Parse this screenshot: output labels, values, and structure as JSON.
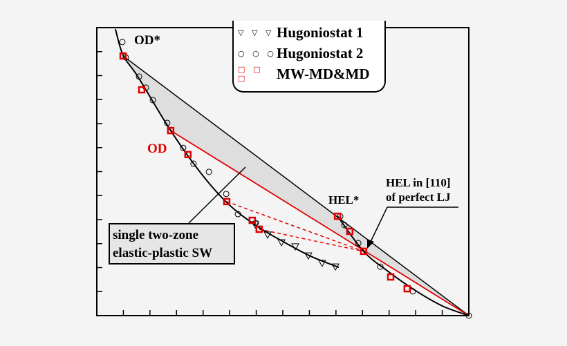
{
  "chart_data": {
    "type": "scatter",
    "title": "",
    "xlabel": "",
    "ylabel": "",
    "xlim": [
      0,
      14
    ],
    "ylim": [
      0,
      12
    ],
    "x_ticks": 14,
    "y_ticks": 12,
    "tick_labels_shown": false,
    "grid": false,
    "legend_placement": "top-right",
    "colors": {
      "black": "#000000",
      "red": "#e00000",
      "shade": "#dedede"
    },
    "series": [
      {
        "name": "Hugoniostat 1",
        "marker": "triangle-down",
        "color": "#000000",
        "points": [
          [
            5.96,
            3.8
          ],
          [
            6.43,
            3.37
          ],
          [
            6.95,
            3.05
          ],
          [
            7.47,
            2.88
          ],
          [
            7.96,
            2.5
          ],
          [
            8.48,
            2.19
          ],
          [
            8.98,
            2.04
          ]
        ]
      },
      {
        "name": "Hugoniostat 2",
        "marker": "circle",
        "color": "#000000",
        "points": [
          [
            0.96,
            11.4
          ],
          [
            1.09,
            10.76
          ],
          [
            1.59,
            9.96
          ],
          [
            1.85,
            9.5
          ],
          [
            2.11,
            8.98
          ],
          [
            2.65,
            8.03
          ],
          [
            3.25,
            6.99
          ],
          [
            3.64,
            6.33
          ],
          [
            4.22,
            5.99
          ],
          [
            4.87,
            5.07
          ],
          [
            5.31,
            4.23
          ],
          [
            5.98,
            3.86
          ],
          [
            9.16,
            4.14
          ],
          [
            9.32,
            3.77
          ],
          [
            9.84,
            3.02
          ],
          [
            10.67,
            2.04
          ],
          [
            11.89,
            1.01
          ],
          [
            14.0,
            0.0
          ]
        ]
      },
      {
        "name": "MW-MD&MD",
        "marker": "square",
        "color": "#e00000",
        "points": [
          [
            0.99,
            10.82
          ],
          [
            1.69,
            9.41
          ],
          [
            2.78,
            7.71
          ],
          [
            3.43,
            6.71
          ],
          [
            4.89,
            4.75
          ],
          [
            5.85,
            3.97
          ],
          [
            6.11,
            3.6
          ],
          [
            9.06,
            4.14
          ],
          [
            9.52,
            3.51
          ],
          [
            10.04,
            2.68
          ],
          [
            11.06,
            1.61
          ],
          [
            11.68,
            1.12
          ]
        ]
      }
    ],
    "curves": {
      "hugoniot_main": [
        [
          0.7,
          11.94
        ],
        [
          0.99,
          10.85
        ],
        [
          1.56,
          9.93
        ],
        [
          2.78,
          7.71
        ],
        [
          3.9,
          5.96
        ],
        [
          4.94,
          4.66
        ],
        [
          6.01,
          3.74
        ],
        [
          7.02,
          3.08
        ],
        [
          8.06,
          2.47
        ],
        [
          9.11,
          2.01
        ]
      ],
      "hugoniot_hel": [
        [
          9.06,
          4.14
        ],
        [
          10.04,
          2.68
        ],
        [
          10.93,
          1.87
        ],
        [
          11.97,
          1.06
        ],
        [
          13.01,
          0.4
        ],
        [
          14.0,
          0.0
        ]
      ],
      "od_star_line": [
        [
          0.99,
          10.82
        ],
        [
          14.0,
          0.0
        ]
      ],
      "od_line": [
        [
          2.78,
          7.71
        ],
        [
          14.0,
          0.0
        ]
      ],
      "dashed_lines": [
        [
          [
            4.89,
            4.75
          ],
          [
            10.04,
            2.68
          ]
        ],
        [
          [
            6.11,
            3.6
          ],
          [
            10.04,
            2.68
          ]
        ]
      ]
    },
    "annotations": {
      "od_star": "OD*",
      "od": "OD",
      "hel_star": "HEL*",
      "hel_line1": "HEL in [110]",
      "hel_line2": "of perfect LJ",
      "sw_line1": "single two-zone",
      "sw_line2": "elastic-plastic SW"
    },
    "legend": [
      {
        "label": "Hugoniostat 1",
        "symbol": "▽ ▽ ▽"
      },
      {
        "label": "Hugoniostat 2",
        "symbol": "○ ○ ○"
      },
      {
        "label": "MW-MD&MD",
        "symbol": "□ □ □"
      }
    ]
  }
}
